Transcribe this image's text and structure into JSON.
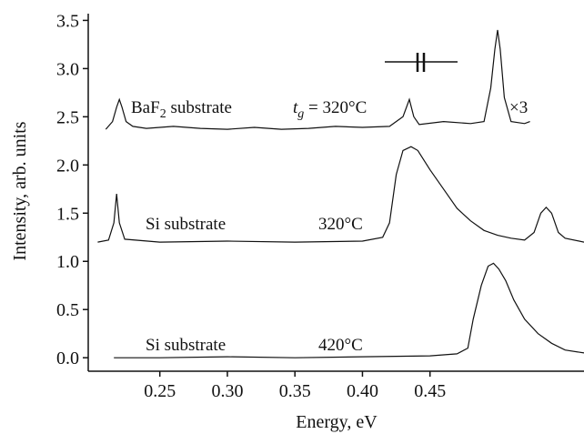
{
  "chart_data": {
    "type": "line",
    "xlabel": "Energy, eV",
    "ylabel": "Intensity, arb. units",
    "xlim": [
      0.197,
      0.564
    ],
    "ylim": [
      -0.14,
      3.57
    ],
    "xticks": [
      0.25,
      {
        "value": 0.3,
        "label": "0.30"
      },
      0.35,
      {
        "value": 0.4,
        "label": "0.40"
      },
      0.45
    ],
    "yticks": [
      {
        "value": 0,
        "label": "0.0"
      },
      0.5,
      {
        "value": 1,
        "label": "1.0"
      },
      1.5,
      {
        "value": 2,
        "label": "2.0"
      },
      2.5,
      {
        "value": 3,
        "label": "3.0"
      },
      3.5
    ],
    "series": [
      {
        "color": "#111111",
        "x": [
          0.21,
          0.215,
          0.218,
          0.22,
          0.222,
          0.225,
          0.23,
          0.24,
          0.26,
          0.28,
          0.3,
          0.32,
          0.34,
          0.36,
          0.38,
          0.4,
          0.42,
          0.43,
          0.4347,
          0.438,
          0.442,
          0.46,
          0.48,
          0.49,
          0.495,
          0.498,
          0.5,
          0.502,
          0.505,
          0.51,
          0.52,
          0.524
        ],
        "values": [
          2.37,
          2.45,
          2.6,
          2.68,
          2.6,
          2.45,
          2.4,
          2.38,
          2.4,
          2.38,
          2.37,
          2.39,
          2.37,
          2.38,
          2.4,
          2.39,
          2.4,
          2.5,
          2.68,
          2.5,
          2.42,
          2.45,
          2.43,
          2.45,
          2.8,
          3.2,
          3.4,
          3.2,
          2.7,
          2.45,
          2.43,
          2.45
        ]
      },
      {
        "color": "#111111",
        "x": [
          0.204,
          0.212,
          0.216,
          0.218,
          0.22,
          0.224,
          0.25,
          0.3,
          0.35,
          0.4,
          0.415,
          0.42,
          0.425,
          0.43,
          0.436,
          0.441,
          0.45,
          0.46,
          0.47,
          0.48,
          0.49,
          0.5,
          0.51,
          0.52,
          0.527,
          0.532,
          0.536,
          0.54,
          0.545,
          0.55,
          0.564
        ],
        "values": [
          1.2,
          1.22,
          1.4,
          1.7,
          1.4,
          1.23,
          1.2,
          1.21,
          1.2,
          1.21,
          1.25,
          1.4,
          1.9,
          2.15,
          2.19,
          2.15,
          1.95,
          1.75,
          1.55,
          1.42,
          1.32,
          1.27,
          1.24,
          1.22,
          1.3,
          1.5,
          1.56,
          1.5,
          1.3,
          1.24,
          1.2
        ]
      },
      {
        "color": "#111111",
        "x": [
          0.216,
          0.25,
          0.3,
          0.35,
          0.4,
          0.45,
          0.47,
          0.478,
          0.482,
          0.488,
          0.493,
          0.497,
          0.501,
          0.506,
          0.512,
          0.52,
          0.53,
          0.54,
          0.55,
          0.564
        ],
        "values": [
          0.0,
          0.0,
          0.01,
          0.0,
          0.01,
          0.02,
          0.04,
          0.1,
          0.4,
          0.75,
          0.95,
          0.98,
          0.92,
          0.8,
          0.6,
          0.4,
          0.25,
          0.15,
          0.08,
          0.05
        ]
      }
    ],
    "annotations": {
      "baf2": {
        "base": "BaF",
        "subscript": "2",
        "text": " substrate"
      },
      "tg": {
        "symbol": "t",
        "subscript": "g",
        "text": " = 320°C"
      },
      "scale": "×3",
      "si1": "Si substrate",
      "si1_temp": "320°C",
      "si2": "Si substrate",
      "si2_temp": "420°C"
    }
  }
}
